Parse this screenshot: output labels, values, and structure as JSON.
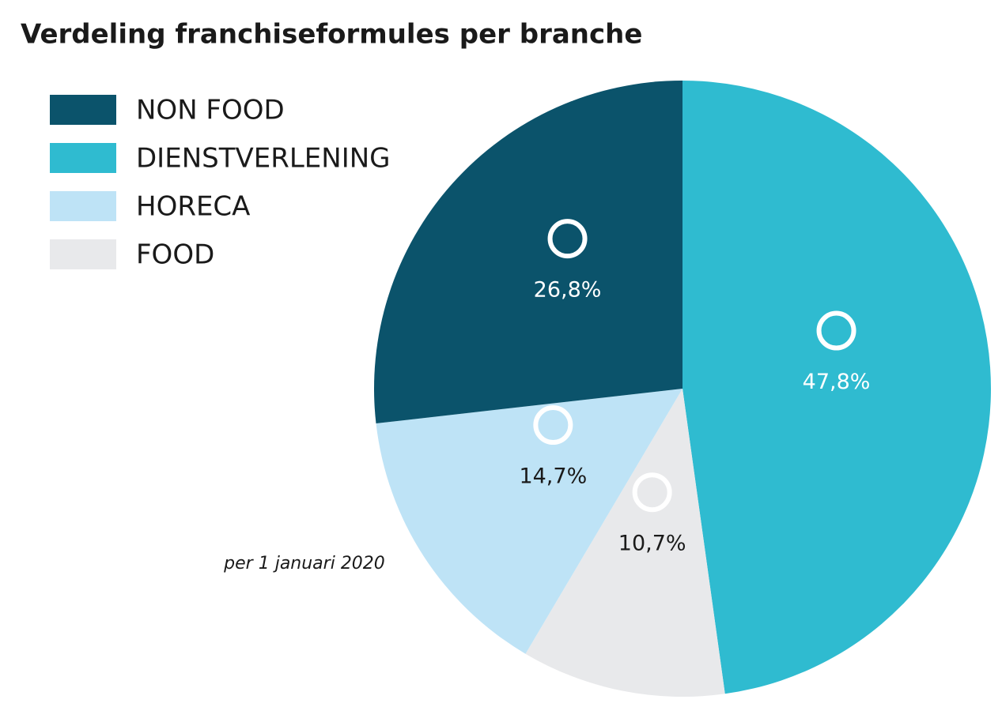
{
  "chart_data": {
    "type": "pie",
    "title": "Verdeling franchiseformules per branche",
    "subtitle": "per 1 januari 2020",
    "categories": [
      "NON FOOD",
      "DIENSTVERLENING",
      "HORECA",
      "FOOD"
    ],
    "values": [
      26.8,
      47.8,
      14.7,
      10.7
    ],
    "value_labels": [
      "26,8%",
      "47,8%",
      "14,7%",
      "10,7%"
    ],
    "colors": [
      "#0b536b",
      "#2fbbd0",
      "#bee3f6",
      "#e8e9eb"
    ],
    "slice_order": [
      1,
      3,
      2,
      0
    ],
    "legend": "top-left"
  }
}
